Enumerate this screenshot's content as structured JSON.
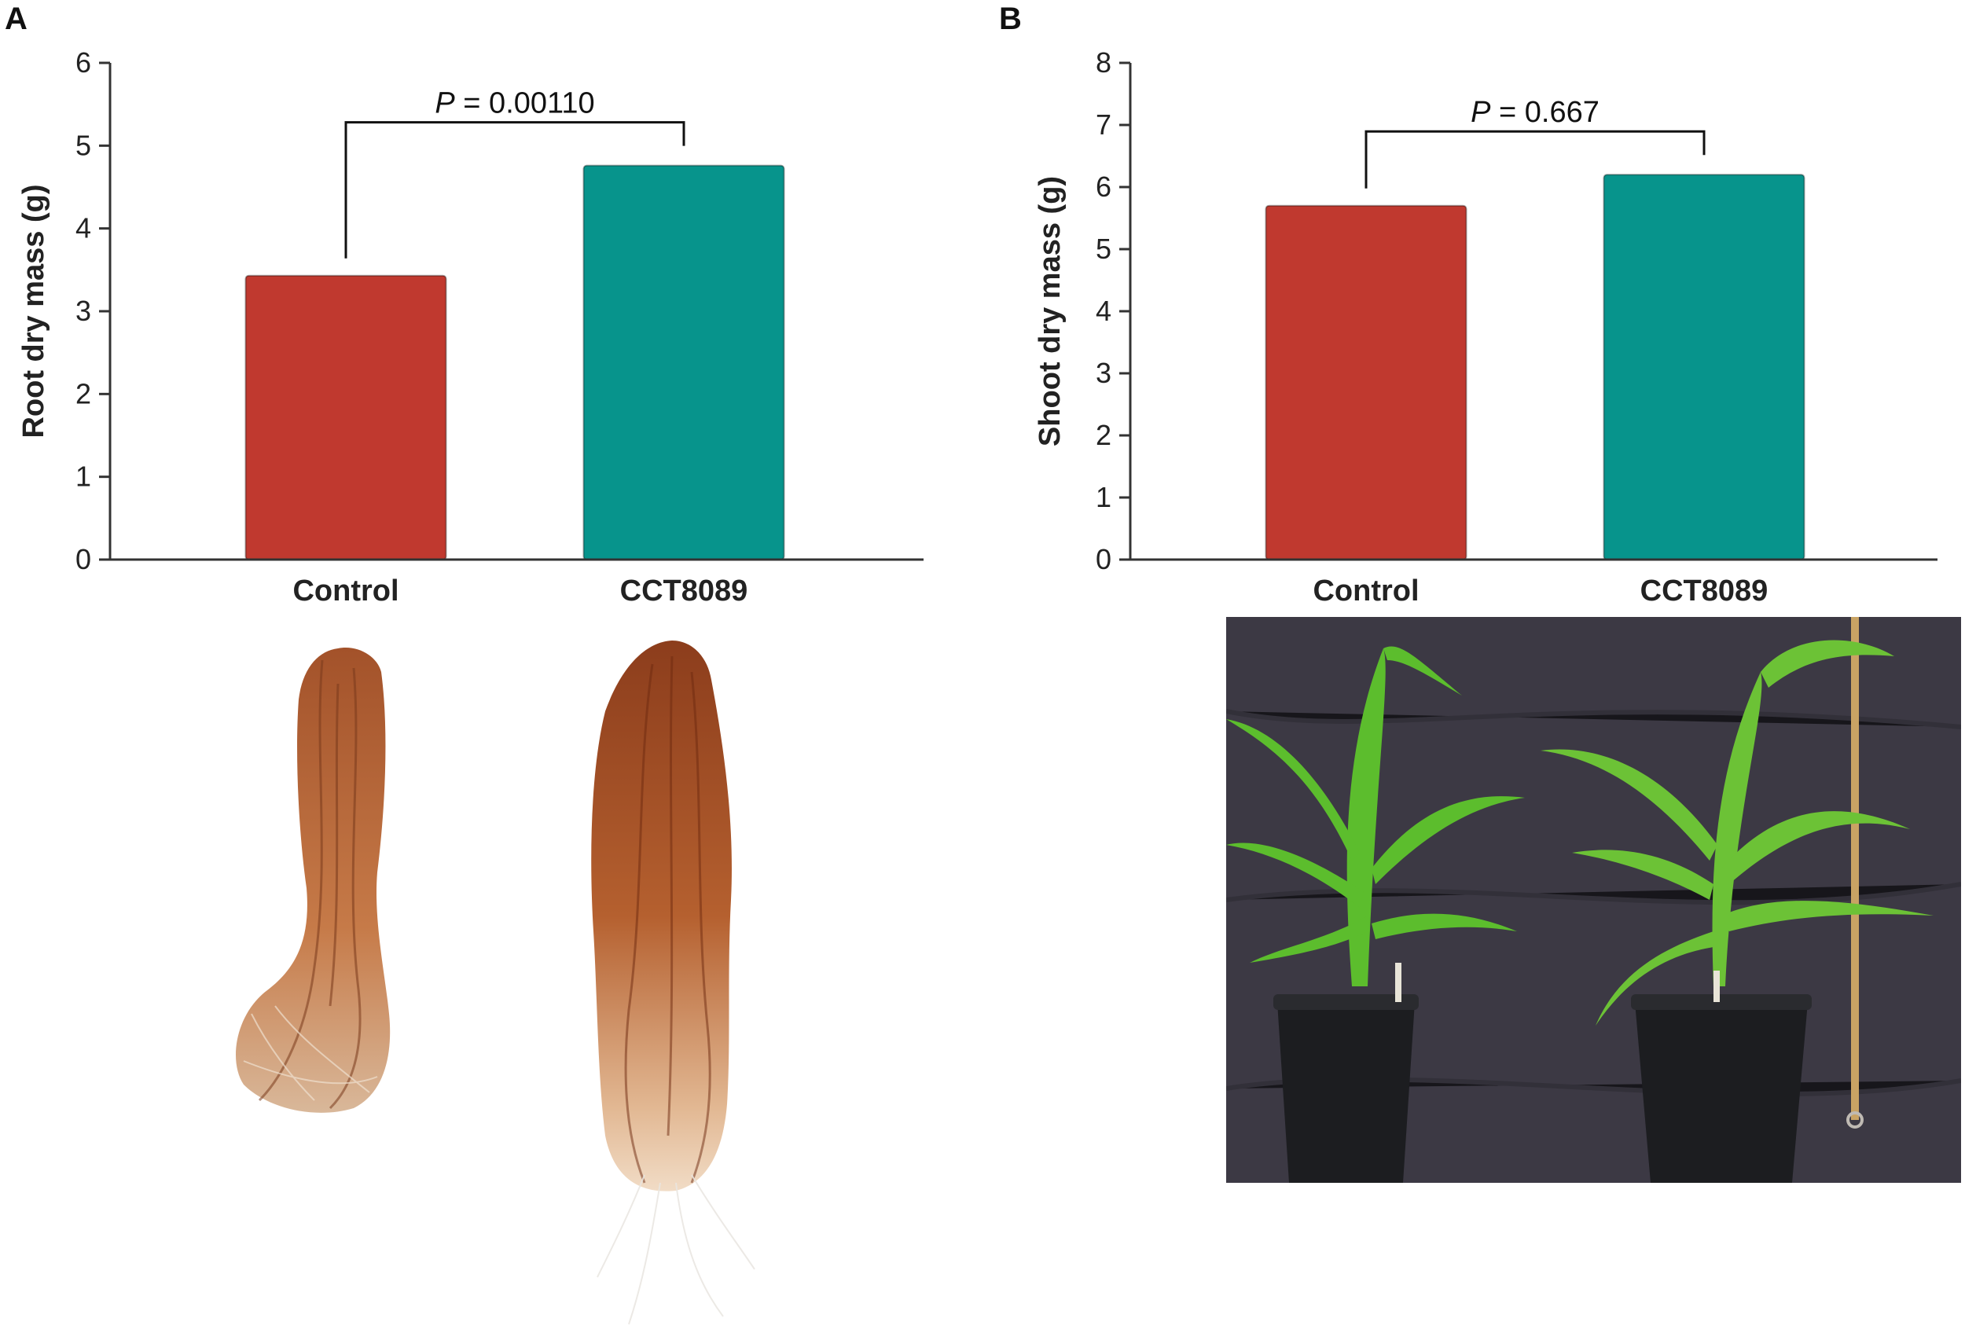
{
  "panels": {
    "a_letter": "A",
    "b_letter": "B"
  },
  "chart_data": [
    {
      "type": "bar",
      "panel": "A",
      "title": "",
      "xlabel": "",
      "ylabel": "Root dry mass (g)",
      "categories": [
        "Control",
        "CCT8089"
      ],
      "values": [
        3.43,
        4.76
      ],
      "colors": [
        "#c0392f",
        "#07948c"
      ],
      "ylim": [
        0,
        6
      ],
      "yticks": [
        0,
        1,
        2,
        3,
        4,
        5,
        6
      ],
      "grid": false,
      "annotation": {
        "p_italic": "P",
        "p_text": " = 0.00110"
      }
    },
    {
      "type": "bar",
      "panel": "B",
      "title": "",
      "xlabel": "",
      "ylabel": "Shoot dry mass (g)",
      "categories": [
        "Control",
        "CCT8089"
      ],
      "values": [
        5.7,
        6.2
      ],
      "colors": [
        "#c0392f",
        "#07948c"
      ],
      "ylim": [
        0,
        8
      ],
      "yticks": [
        0,
        1,
        2,
        3,
        4,
        5,
        6,
        7,
        8
      ],
      "grid": false,
      "annotation": {
        "p_italic": "P",
        "p_text": " = 0.667"
      }
    }
  ],
  "photos": {
    "roots_control": "root-system-control",
    "roots_treated": "root-system-cct8089",
    "plants": "maize-plants-in-pots"
  }
}
